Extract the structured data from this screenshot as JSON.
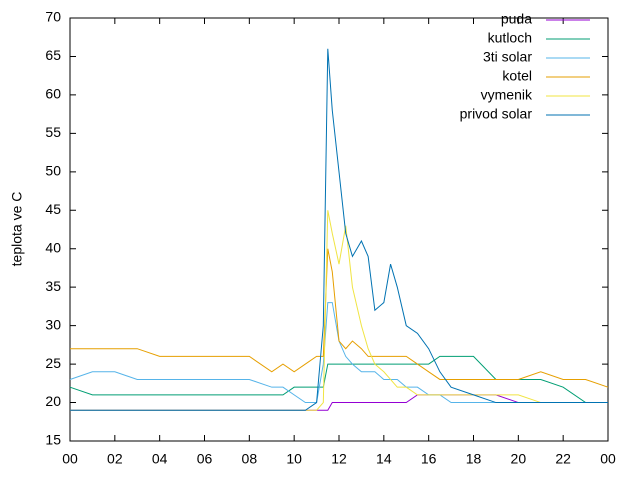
{
  "chart_data": {
    "type": "line",
    "ylabel": "teplota ve C",
    "x": [
      0,
      1,
      2,
      3,
      4,
      5,
      6,
      7,
      8,
      9,
      9.5,
      10,
      10.5,
      11,
      11.3,
      11.5,
      11.7,
      12,
      12.3,
      12.6,
      13,
      13.3,
      13.6,
      14,
      14.3,
      14.6,
      15,
      15.5,
      16,
      16.5,
      17,
      18,
      19,
      20,
      21,
      22,
      23,
      24
    ],
    "series": [
      {
        "name": "puda",
        "color": "#9400d3",
        "values": [
          19,
          19,
          19,
          19,
          19,
          19,
          19,
          19,
          19,
          19,
          19,
          19,
          19,
          19,
          19,
          19,
          20,
          20,
          20,
          20,
          20,
          20,
          20,
          20,
          20,
          20,
          20,
          21,
          21,
          21,
          21,
          21,
          21,
          20,
          20,
          20,
          20,
          20
        ]
      },
      {
        "name": "kutloch",
        "color": "#009e73",
        "values": [
          22,
          21,
          21,
          21,
          21,
          21,
          21,
          21,
          21,
          21,
          21,
          22,
          22,
          22,
          22,
          25,
          25,
          25,
          25,
          25,
          25,
          25,
          25,
          25,
          25,
          25,
          25,
          25,
          25,
          26,
          26,
          26,
          23,
          23,
          23,
          22,
          20,
          20
        ]
      },
      {
        "name": "3ti solar",
        "color": "#56b4e9",
        "values": [
          23,
          24,
          24,
          23,
          23,
          23,
          23,
          23,
          23,
          22,
          22,
          21,
          20,
          20,
          25,
          33,
          33,
          28,
          26,
          25,
          24,
          24,
          24,
          23,
          23,
          23,
          22,
          22,
          21,
          21,
          20,
          20,
          20,
          20,
          20,
          20,
          20,
          20
        ]
      },
      {
        "name": "kotel",
        "color": "#e69f00",
        "values": [
          27,
          27,
          27,
          27,
          26,
          26,
          26,
          26,
          26,
          24,
          25,
          24,
          25,
          26,
          26,
          40,
          37,
          28,
          27,
          28,
          27,
          26,
          26,
          26,
          26,
          26,
          26,
          25,
          24,
          23,
          23,
          23,
          23,
          23,
          24,
          23,
          23,
          22
        ]
      },
      {
        "name": "vymenik",
        "color": "#f0e442",
        "values": [
          19,
          19,
          19,
          19,
          19,
          19,
          19,
          19,
          19,
          19,
          19,
          19,
          19,
          19,
          20,
          45,
          42,
          38,
          43,
          35,
          30,
          27,
          25,
          24,
          23,
          22,
          22,
          21,
          21,
          21,
          21,
          21,
          21,
          21,
          20,
          20,
          20,
          20
        ]
      },
      {
        "name": "privod solar",
        "color": "#0072b2",
        "values": [
          19,
          19,
          19,
          19,
          19,
          19,
          19,
          19,
          19,
          19,
          19,
          19,
          19,
          20,
          30,
          66,
          58,
          50,
          42,
          39,
          41,
          39,
          32,
          33,
          38,
          35,
          30,
          29,
          27,
          24,
          22,
          21,
          20,
          20,
          20,
          20,
          20,
          20
        ]
      }
    ],
    "xlim": [
      0,
      24
    ],
    "xticks": [
      {
        "value": 0,
        "label": "00"
      },
      {
        "value": 2,
        "label": "02"
      },
      {
        "value": 4,
        "label": "04"
      },
      {
        "value": 6,
        "label": "06"
      },
      {
        "value": 8,
        "label": "08"
      },
      10,
      12,
      14,
      16,
      18,
      20,
      22,
      {
        "value": 24,
        "label": "00"
      }
    ],
    "ylim": [
      15,
      70
    ],
    "yticks": [
      15,
      20,
      25,
      30,
      35,
      40,
      45,
      50,
      55,
      60,
      65,
      70
    ],
    "legend": "top-right"
  }
}
